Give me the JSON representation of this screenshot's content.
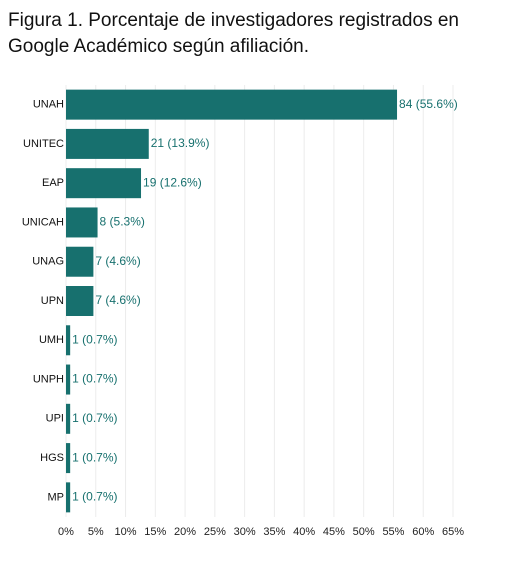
{
  "chart_data": {
    "type": "hbar",
    "title": "Figura 1. Porcentaje de investigadores registrados en Google Académico según afiliación.",
    "categories": [
      "UNAH",
      "UNITEC",
      "EAP",
      "UNICAH",
      "UNAG",
      "UPN",
      "UMH",
      "UNPH",
      "UPI",
      "HGS",
      "MP"
    ],
    "values": [
      55.6,
      13.9,
      12.6,
      5.3,
      4.6,
      4.6,
      0.7,
      0.7,
      0.7,
      0.7,
      0.7
    ],
    "value_labels": [
      "84 (55.6%)",
      "21 (13.9%)",
      "19 (12.6%)",
      "8 (5.3%)",
      "7 (4.6%)",
      "7 (4.6%)",
      "1 (0.7%)",
      "1 (0.7%)",
      "1 (0.7%)",
      "1 (0.7%)",
      "1 (0.7%)"
    ],
    "color": "#17706e",
    "xlim": [
      0,
      65
    ],
    "xticks": [
      {
        "value": 0,
        "label": "0%"
      },
      {
        "value": 5,
        "label": "5%"
      },
      {
        "value": 10,
        "label": "10%"
      },
      {
        "value": 15,
        "label": "15%"
      },
      {
        "value": 20,
        "label": "20%"
      },
      {
        "value": 25,
        "label": "25%"
      },
      {
        "value": 30,
        "label": "30%"
      },
      {
        "value": 35,
        "label": "35%"
      },
      {
        "value": 40,
        "label": "40%"
      },
      {
        "value": 45,
        "label": "45%"
      },
      {
        "value": 50,
        "label": "50%"
      },
      {
        "value": 55,
        "label": "55%"
      },
      {
        "value": 60,
        "label": "60%"
      },
      {
        "value": 65,
        "label": "65%"
      }
    ],
    "grid": true
  }
}
